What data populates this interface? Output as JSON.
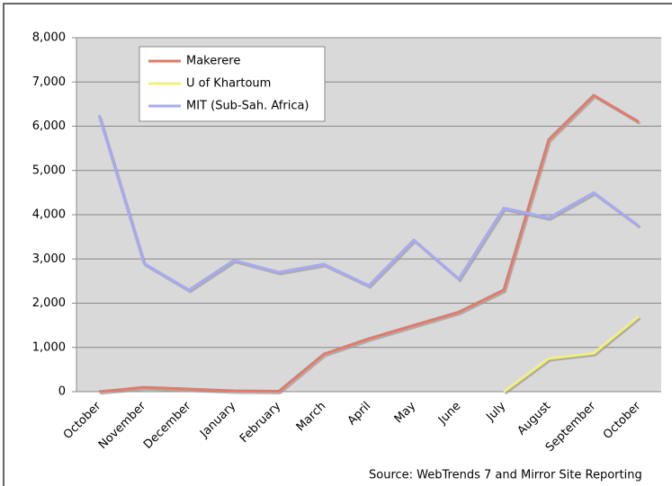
{
  "chart_data": {
    "type": "line",
    "categories": [
      "October",
      "November",
      "December",
      "January",
      "February",
      "March",
      "April",
      "May",
      "June",
      "July",
      "August",
      "September",
      "October"
    ],
    "series": [
      {
        "name": "Makerere",
        "color": "#e07b6a",
        "values": [
          0,
          100,
          60,
          20,
          10,
          850,
          1200,
          1500,
          1800,
          2300,
          5700,
          6700,
          6100
        ]
      },
      {
        "name": "U of Khartoum",
        "color": "#f3ef7e",
        "values": [
          null,
          null,
          null,
          null,
          null,
          null,
          null,
          null,
          null,
          0,
          750,
          870,
          1700
        ]
      },
      {
        "name": "MIT (Sub-Sah. Africa)",
        "color": "#a9a9f2",
        "values": [
          6250,
          2900,
          2300,
          2970,
          2700,
          2880,
          2400,
          3430,
          2550,
          4150,
          3930,
          4500,
          3750
        ]
      }
    ],
    "ylim": [
      0,
      8000
    ],
    "yticks": [
      0,
      {
        "value": 1000,
        "label": "1,000"
      },
      {
        "value": 2000,
        "label": "2,000"
      },
      {
        "value": 3000,
        "label": "3,000"
      },
      {
        "value": 4000,
        "label": "4,000"
      },
      {
        "value": 5000,
        "label": "5,000"
      },
      {
        "value": 6000,
        "label": "6,000"
      },
      {
        "value": 7000,
        "label": "7,000"
      },
      {
        "value": 8000,
        "label": "8,000"
      }
    ],
    "grid": true,
    "legend": "upper left",
    "source": "Source: WebTrends 7 and Mirror Site Reporting"
  }
}
